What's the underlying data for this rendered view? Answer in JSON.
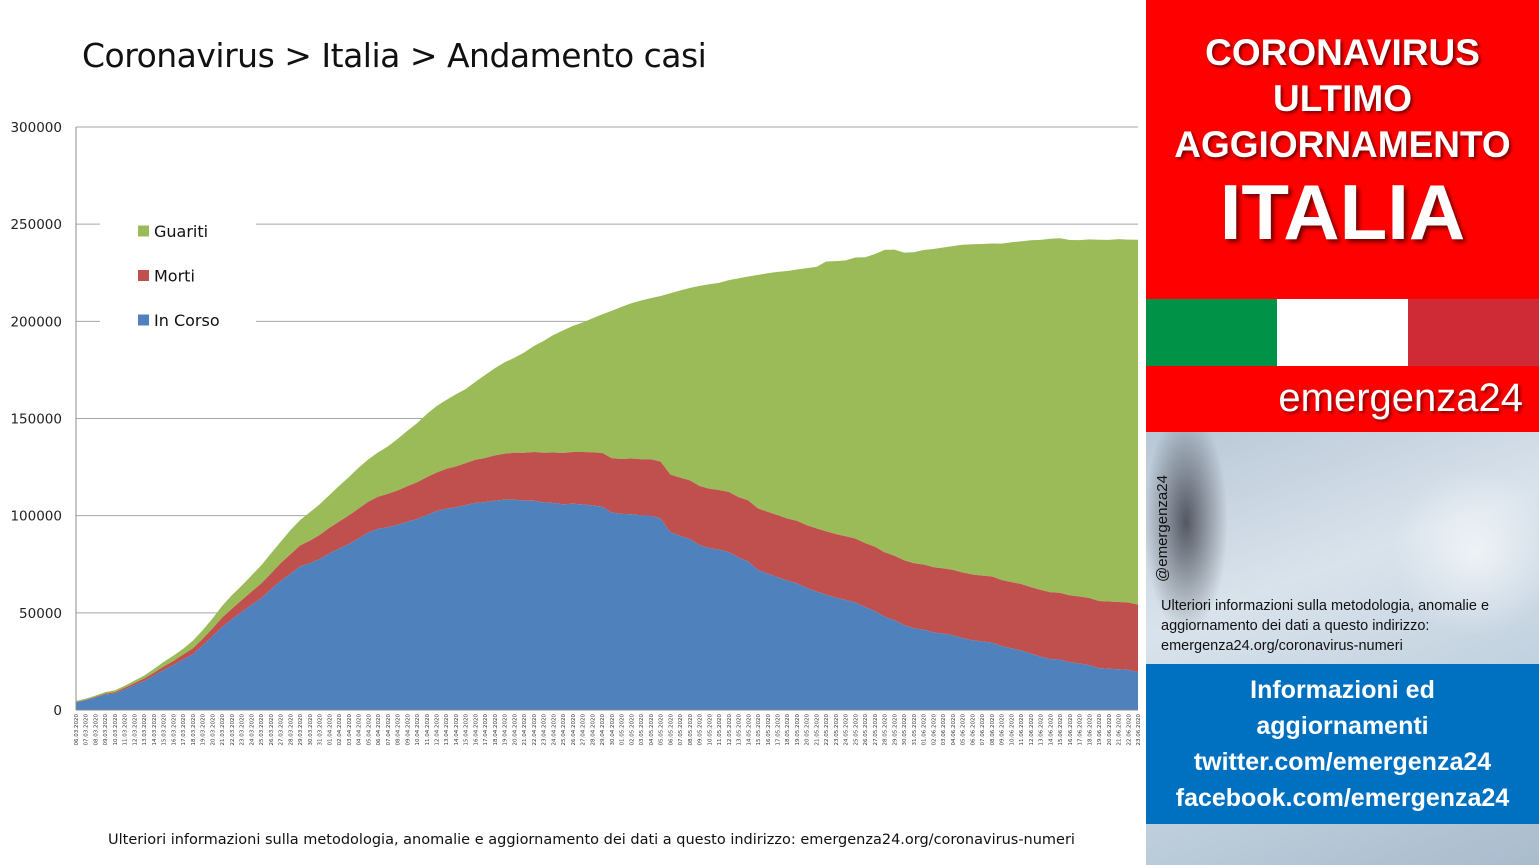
{
  "chart_data": {
    "type": "area",
    "stacked": true,
    "title": "Coronavirus > Italia > Andamento casi",
    "ylim": [
      0,
      300000
    ],
    "yticks": [
      0,
      50000,
      100000,
      150000,
      200000,
      250000,
      300000
    ],
    "ytick_labels": [
      "0",
      "50000",
      "100000",
      "150000",
      "200000",
      "250000",
      "300000"
    ],
    "grid": true,
    "legend_position": "top-left",
    "legend": [
      "Guariti",
      "Morti",
      "In Corso"
    ],
    "x": [
      "06.03.2020",
      "07.03.2020",
      "08.03.2020",
      "09.03.2020",
      "10.03.2020",
      "11.03.2020",
      "12.03.2020",
      "13.03.2020",
      "14.03.2020",
      "15.03.2020",
      "16.03.2020",
      "17.03.2020",
      "18.03.2020",
      "19.03.2020",
      "20.03.2020",
      "21.03.2020",
      "22.03.2020",
      "23.03.2020",
      "24.03.2020",
      "25.03.2020",
      "26.03.2020",
      "27.03.2020",
      "28.03.2020",
      "29.03.2020",
      "30.03.2020",
      "31.03.2020",
      "01.04.2020",
      "02.04.2020",
      "03.04.2020",
      "04.04.2020",
      "05.04.2020",
      "06.04.2020",
      "07.04.2020",
      "08.04.2020",
      "09.04.2020",
      "10.04.2020",
      "11.04.2020",
      "12.04.2020",
      "13.04.2020",
      "14.04.2020",
      "15.04.2020",
      "16.04.2020",
      "17.04.2020",
      "18.04.2020",
      "19.04.2020",
      "20.04.2020",
      "21.04.2020",
      "22.04.2020",
      "23.04.2020",
      "24.04.2020",
      "25.04.2020",
      "26.04.2020",
      "27.04.2020",
      "28.04.2020",
      "29.04.2020",
      "30.04.2020",
      "01.05.2020",
      "02.05.2020",
      "03.05.2020",
      "04.05.2020",
      "05.05.2020",
      "06.05.2020",
      "07.05.2020",
      "08.05.2020",
      "09.05.2020",
      "10.05.2020",
      "11.05.2020",
      "12.05.2020",
      "13.05.2020",
      "14.05.2020",
      "15.05.2020",
      "16.05.2020",
      "17.05.2020",
      "18.05.2020",
      "19.05.2020",
      "20.05.2020",
      "21.05.2020",
      "22.05.2020",
      "23.05.2020",
      "24.05.2020",
      "25.05.2020",
      "26.05.2020",
      "27.05.2020",
      "28.05.2020",
      "29.05.2020",
      "30.05.2020",
      "31.05.2020",
      "01.06.2020",
      "02.06.2020",
      "03.06.2020",
      "04.06.2020",
      "05.06.2020",
      "06.06.2020",
      "07.06.2020",
      "08.06.2020",
      "09.06.2020",
      "10.06.2020",
      "11.06.2020",
      "12.06.2020",
      "13.06.2020",
      "14.06.2020",
      "15.06.2020",
      "16.06.2020",
      "17.06.2020",
      "18.06.2020",
      "19.06.2020",
      "20.06.2020",
      "21.06.2020",
      "22.06.2020",
      "23.06.2020"
    ],
    "series": [
      {
        "name": "In Corso",
        "color": "#4f81bd",
        "values": [
          3916,
          5061,
          6387,
          7985,
          8514,
          10590,
          12839,
          14955,
          17750,
          20603,
          23073,
          26062,
          28710,
          33190,
          37860,
          42681,
          46638,
          50418,
          54030,
          57521,
          62013,
          66414,
          70065,
          73880,
          75528,
          77635,
          80572,
          83049,
          85388,
          88274,
          91246,
          93187,
          94067,
          95262,
          96877,
          98273,
          100269,
          102253,
          103616,
          104291,
          105418,
          106607,
          106962,
          107771,
          108257,
          108237,
          107709,
          107699,
          106848,
          106527,
          105847,
          106103,
          105813,
          105205,
          104657,
          101551,
          100943,
          100704,
          100179,
          99980,
          98467,
          91528,
          89624,
          87961,
          84842,
          83324,
          82488,
          81266,
          78457,
          76440,
          72070,
          70187,
          68351,
          66553,
          65129,
          62752,
          60960,
          59322,
          57752,
          56594,
          55300,
          52942,
          50966,
          47986,
          46175,
          43691,
          42075,
          41367,
          39893,
          39297,
          38429,
          36976,
          35877,
          35262,
          34730,
          32872,
          31710,
          30637,
          28997,
          27485,
          26274,
          25909,
          24569,
          23925,
          23101,
          21543,
          21212,
          20972,
          20637,
          19573
        ]
      },
      {
        "name": "Morti",
        "color": "#c0504d",
        "values": [
          197,
          233,
          366,
          463,
          631,
          827,
          1016,
          1266,
          1441,
          1809,
          2158,
          2503,
          2978,
          3405,
          4032,
          4825,
          5476,
          6077,
          6820,
          7503,
          8165,
          9134,
          10023,
          10779,
          11591,
          12428,
          13155,
          13915,
          14681,
          15362,
          15887,
          16523,
          17127,
          17669,
          18279,
          18849,
          19468,
          19899,
          20465,
          21067,
          21645,
          22170,
          22745,
          23227,
          23660,
          24114,
          24648,
          25085,
          25549,
          25969,
          26384,
          26644,
          26977,
          27359,
          27682,
          27967,
          28236,
          28710,
          28884,
          29079,
          29315,
          29684,
          29958,
          30201,
          30395,
          30560,
          30739,
          30911,
          31106,
          31368,
          31610,
          31763,
          31908,
          32007,
          32169,
          32330,
          32486,
          32616,
          32735,
          32785,
          32877,
          32955,
          33072,
          33142,
          33229,
          33340,
          33415,
          33475,
          33530,
          33601,
          33689,
          33774,
          33846,
          33899,
          33964,
          34043,
          34114,
          34167,
          34223,
          34301,
          34345,
          34371,
          34405,
          34448,
          34514,
          34561,
          34610,
          34634,
          34657,
          34675
        ]
      },
      {
        "name": "Guariti",
        "color": "#9bbb59",
        "values": [
          523,
          589,
          622,
          724,
          1004,
          1045,
          1258,
          1439,
          1966,
          2335,
          2749,
          2941,
          4025,
          4440,
          5129,
          6072,
          7024,
          7432,
          8326,
          9362,
          10361,
          10950,
          12384,
          13030,
          14620,
          15729,
          16847,
          18278,
          19758,
          20996,
          21815,
          22837,
          24392,
          26491,
          28470,
          30455,
          32534,
          34211,
          35435,
          37130,
          38092,
          40164,
          42727,
          44927,
          47055,
          48877,
          51600,
          54543,
          57576,
          60498,
          63120,
          64928,
          66624,
          68941,
          71252,
          75945,
          78249,
          79914,
          81654,
          82879,
          85231,
          93245,
          96276,
          99023,
          103031,
          105186,
          106587,
          109039,
          112541,
          115288,
          120205,
          122810,
          125176,
          127326,
          129401,
          132282,
          134560,
          138840,
          140479,
          141981,
          144658,
          147101,
          150604,
          155633,
          157507,
          158355,
          160092,
          161895,
          163781,
          165078,
          166584,
          168646,
          169939,
          170630,
          171338,
          173085,
          174865,
          176370,
          178526,
          180152,
          181907,
          182453,
          182893,
          183426,
          184585,
          185894,
          186111,
          186725,
          186725,
          187758
        ]
      }
    ]
  },
  "footer_note": "Ulteriori informazioni sulla metodologia, anomalie e aggiornamento dei dati a questo indirizzo: emergenza24.org/coronavirus-numeri",
  "panel": {
    "header_lines": [
      "CORONAVIRUS",
      "ULTIMO",
      "AGGIORNAMENTO"
    ],
    "country": "ITALIA",
    "flag_colors": [
      "#009246",
      "#ffffff",
      "#ce2b37"
    ],
    "brand": "emergenza24",
    "handle": "@emergenza24",
    "info_text": "Ulteriori informazioni sulla metodologia, anomalie e aggiornamento dei dati a questo indirizzo: emergenza24.org/coronavirus-numeri",
    "social_lines": [
      "Informazioni ed",
      "aggiornamenti",
      "twitter.com/emergenza24",
      "facebook.com/emergenza24"
    ]
  }
}
